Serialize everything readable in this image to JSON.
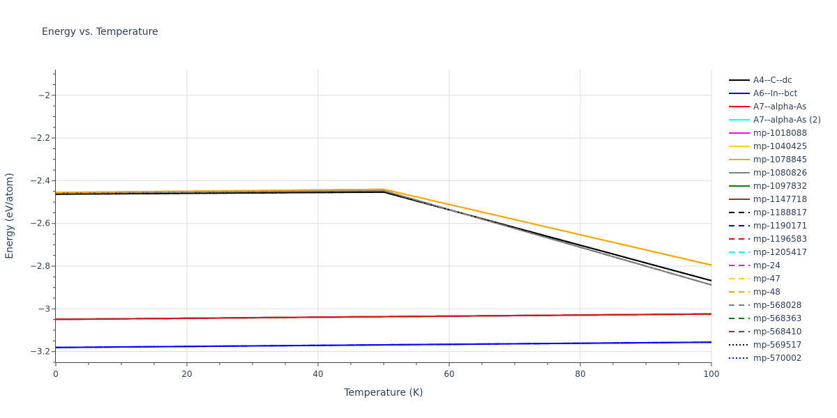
{
  "chart_data": {
    "type": "line",
    "title": "Energy vs. Temperature",
    "xlabel": "Temperature (K)",
    "ylabel": "Energy (eV/atom)",
    "xlim": [
      0,
      100
    ],
    "ylim": [
      -3.25,
      -1.88
    ],
    "x_ticks": [
      0,
      20,
      40,
      60,
      80,
      100
    ],
    "x_tick_labels": [
      "0",
      "20",
      "40",
      "60",
      "80",
      "100"
    ],
    "y_ticks": [
      -2,
      -2.2,
      -2.4,
      -2.6,
      -2.8,
      -3,
      -3.2
    ],
    "y_tick_labels": [
      "−2",
      "−2.2",
      "−2.4",
      "−2.6",
      "−2.8",
      "−3",
      "−3.2"
    ],
    "grid": true,
    "legend_position": "right",
    "series": [
      {
        "name": "A4--C--dc",
        "color": "#000000",
        "dash": "solid",
        "x": [
          0,
          50,
          100
        ],
        "y": [
          -2.463,
          -2.453,
          -2.868
        ]
      },
      {
        "name": "A6--In--bct",
        "color": "#0000ff",
        "dash": "solid",
        "x": [
          0,
          100
        ],
        "y": [
          -3.181,
          -3.156
        ]
      },
      {
        "name": "A7--alpha-As",
        "color": "#ff0000",
        "dash": "solid",
        "x": [
          0,
          100
        ],
        "y": [
          -3.049,
          -3.024
        ]
      },
      {
        "name": "A7--alpha-As (2)",
        "color": "#00ffff",
        "dash": "solid",
        "x": [
          0,
          100
        ],
        "y": [
          -3.049,
          -3.024
        ]
      },
      {
        "name": "mp-1018088",
        "color": "#ff00ff",
        "dash": "solid",
        "x": [
          0,
          100
        ],
        "y": [
          -3.049,
          -3.024
        ]
      },
      {
        "name": "mp-1040425",
        "color": "#ffd700",
        "dash": "solid",
        "x": [
          0,
          50,
          100
        ],
        "y": [
          -2.455,
          -2.44,
          -2.795
        ]
      },
      {
        "name": "mp-1078845",
        "color": "#ffa500",
        "dash": "solid",
        "x": [
          0,
          50,
          100
        ],
        "y": [
          -2.455,
          -2.44,
          -2.795
        ]
      },
      {
        "name": "mp-1080826",
        "color": "#808080",
        "dash": "solid",
        "x": [
          0,
          50,
          100
        ],
        "y": [
          -2.458,
          -2.447,
          -2.888
        ]
      },
      {
        "name": "mp-1097832",
        "color": "#008000",
        "dash": "solid",
        "x": [
          0,
          100
        ],
        "y": [
          -3.049,
          -3.024
        ]
      },
      {
        "name": "mp-1147718",
        "color": "#a52a2a",
        "dash": "solid",
        "x": [
          0,
          100
        ],
        "y": [
          -3.049,
          -3.024
        ]
      },
      {
        "name": "mp-1188817",
        "color": "#000000",
        "dash": "dash",
        "x": [
          0,
          50,
          100
        ],
        "y": [
          -2.463,
          -2.453,
          -2.868
        ]
      },
      {
        "name": "mp-1190171",
        "color": "#0000ff",
        "dash": "dash",
        "x": [
          0,
          100
        ],
        "y": [
          -3.181,
          -3.156
        ]
      },
      {
        "name": "mp-1196583",
        "color": "#ff0000",
        "dash": "dash",
        "x": [
          0,
          100
        ],
        "y": [
          -3.049,
          -3.024
        ]
      },
      {
        "name": "mp-1205417",
        "color": "#00ffff",
        "dash": "dash",
        "x": [
          0,
          100
        ],
        "y": [
          -3.049,
          -3.024
        ]
      },
      {
        "name": "mp-24",
        "color": "#ff00ff",
        "dash": "dash",
        "x": [
          0,
          100
        ],
        "y": [
          -3.049,
          -3.024
        ]
      },
      {
        "name": "mp-47",
        "color": "#ffd700",
        "dash": "dash",
        "x": [
          0,
          50,
          100
        ],
        "y": [
          -2.455,
          -2.44,
          -2.795
        ]
      },
      {
        "name": "mp-48",
        "color": "#ffa500",
        "dash": "dash",
        "x": [
          0,
          50,
          100
        ],
        "y": [
          -2.455,
          -2.44,
          -2.795
        ]
      },
      {
        "name": "mp-568028",
        "color": "#808080",
        "dash": "dash",
        "x": [
          0,
          50,
          100
        ],
        "y": [
          -2.458,
          -2.447,
          -2.888
        ]
      },
      {
        "name": "mp-568363",
        "color": "#008000",
        "dash": "dash",
        "x": [
          0,
          100
        ],
        "y": [
          -3.049,
          -3.024
        ]
      },
      {
        "name": "mp-568410",
        "color": "#a52a2a",
        "dash": "dash",
        "x": [
          0,
          100
        ],
        "y": [
          -3.049,
          -3.024
        ]
      },
      {
        "name": "mp-569517",
        "color": "#000000",
        "dash": "dot",
        "x": [
          0,
          50,
          100
        ],
        "y": [
          -2.463,
          -2.453,
          -2.868
        ]
      },
      {
        "name": "mp-570002",
        "color": "#0000ff",
        "dash": "dot",
        "x": [
          0,
          100
        ],
        "y": [
          -3.181,
          -3.156
        ]
      }
    ],
    "overlay_lines": [
      {
        "color": "#000000",
        "dash": "dashdot",
        "x": [
          0,
          50,
          100
        ],
        "y": [
          -2.458,
          -2.447,
          -2.888
        ]
      },
      {
        "color": "#808080",
        "dash": "dashdot",
        "x": [
          0,
          50,
          100
        ],
        "y": [
          -2.458,
          -2.447,
          -2.888
        ]
      },
      {
        "color": "#ffa500",
        "dash": "dashdot",
        "x": [
          0,
          50,
          100
        ],
        "y": [
          -2.455,
          -2.44,
          -2.795
        ]
      },
      {
        "color": "#ff0000",
        "dash": "dashdot",
        "x": [
          0,
          100
        ],
        "y": [
          -3.049,
          -3.024
        ]
      },
      {
        "color": "#0000ff",
        "dash": "dashdot",
        "x": [
          0,
          100
        ],
        "y": [
          -3.181,
          -3.156
        ]
      }
    ]
  }
}
